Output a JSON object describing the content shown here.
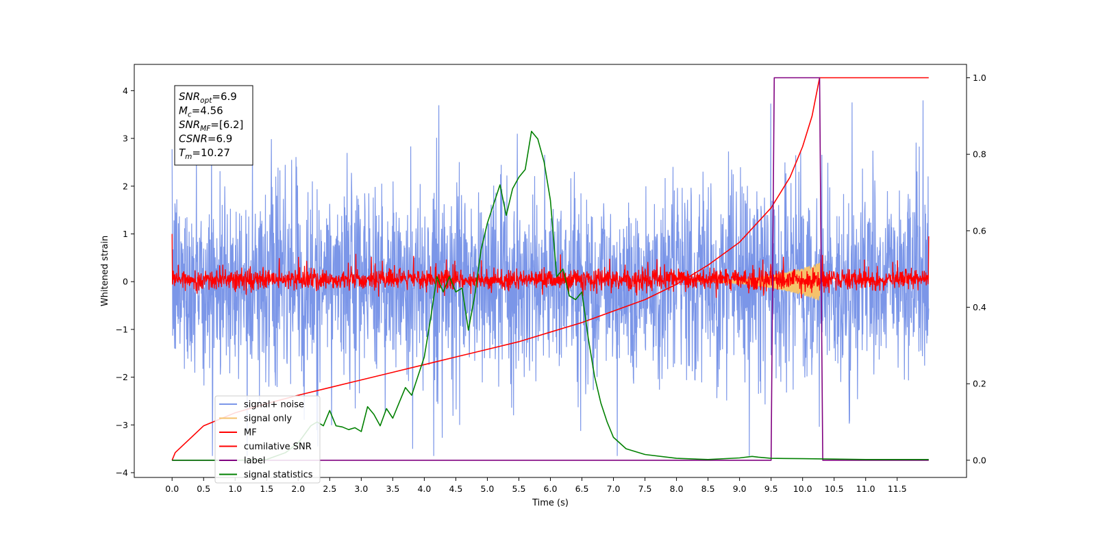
{
  "chart_data": {
    "type": "line",
    "title": "",
    "xlabel": "Time (s)",
    "ylabel": "Whitened strain",
    "ylabel_right": "",
    "xlim": [
      -0.6,
      12.6
    ],
    "ylim": [
      -4.1,
      4.55
    ],
    "ylim_right": [
      -0.045,
      1.035
    ],
    "x_ticks": [
      0.0,
      0.5,
      1.0,
      1.5,
      2.0,
      2.5,
      3.0,
      3.5,
      4.0,
      4.5,
      5.0,
      5.5,
      6.0,
      6.5,
      7.0,
      7.5,
      8.0,
      8.5,
      9.0,
      9.5,
      10.0,
      10.5,
      11.0,
      11.5
    ],
    "x_tick_labels": [
      "0.0",
      "0.5",
      "1.0",
      "1.5",
      "2.0",
      "2.5",
      "3.0",
      "3.5",
      "4.0",
      "4.5",
      "5.0",
      "5.5",
      "6.0",
      "6.5",
      "7.0",
      "7.5",
      "8.0",
      "8.5",
      "9.0",
      "9.5",
      "10.0",
      "10.5",
      "11.0",
      "11.5"
    ],
    "y_ticks": [
      -4,
      -3,
      -2,
      -1,
      0,
      1,
      2,
      3,
      4
    ],
    "y_tick_labels": [
      "−4",
      "−3",
      "−2",
      "−1",
      "0",
      "1",
      "2",
      "3",
      "4"
    ],
    "y_ticks_right": [
      0.0,
      0.2,
      0.4,
      0.6,
      0.8,
      1.0
    ],
    "y_tick_labels_right": [
      "0.0",
      "0.2",
      "0.4",
      "0.6",
      "0.8",
      "1.0"
    ],
    "grid": false,
    "legend_position": "lower-left",
    "annotation": {
      "lines": [
        {
          "base": "SNR",
          "sub": "opt",
          "text": "=6.9"
        },
        {
          "base": "M",
          "sub": "c",
          "text": "=4.56"
        },
        {
          "base": "SNR",
          "sub": "MF",
          "text": "=[6.2]"
        },
        {
          "base": "CSNR",
          "sub": "",
          "text": "=6.9"
        },
        {
          "base": "T",
          "sub": "m",
          "text": "=10.27"
        }
      ]
    },
    "series": [
      {
        "name": "signal+ noise",
        "color": "#7b96e8",
        "axis": "left",
        "style": "noise band",
        "x_range": [
          0.0,
          12.0
        ],
        "typical_range": [
          -2.0,
          2.0
        ],
        "extremes": [
          -3.65,
          4.15
        ]
      },
      {
        "name": "signal only",
        "color": "#f5c26b",
        "axis": "left",
        "style": "chirp",
        "x_range": [
          8.3,
          10.27
        ],
        "peak_amplitude": 0.4,
        "peak_time": 10.27
      },
      {
        "name": "MF",
        "color": "#ff0000",
        "axis": "left",
        "style": "noise band",
        "x_range": [
          0.0,
          12.0
        ],
        "typical_range": [
          -0.25,
          0.35
        ],
        "extremes": [
          -0.35,
          0.65
        ]
      },
      {
        "name": "cumilative SNR",
        "color": "#ff0000",
        "axis": "right",
        "x": [
          0.0,
          0.05,
          0.5,
          1.0,
          1.5,
          2.0,
          2.5,
          3.0,
          3.5,
          4.0,
          4.5,
          5.0,
          5.5,
          6.0,
          6.5,
          7.0,
          7.5,
          8.0,
          8.5,
          9.0,
          9.5,
          9.8,
          10.0,
          10.15,
          10.27,
          10.3,
          11.0,
          12.0
        ],
        "y": [
          0.0,
          0.02,
          0.09,
          0.124,
          0.148,
          0.17,
          0.19,
          0.21,
          0.23,
          0.25,
          0.27,
          0.29,
          0.31,
          0.335,
          0.36,
          0.39,
          0.42,
          0.46,
          0.51,
          0.57,
          0.66,
          0.74,
          0.82,
          0.9,
          1.0,
          1.0,
          1.0,
          1.0
        ]
      },
      {
        "name": "label",
        "color": "#800080",
        "axis": "right",
        "x": [
          0.0,
          9.5,
          9.55,
          10.27,
          10.32,
          12.0
        ],
        "y": [
          0.0,
          0.0,
          1.0,
          1.0,
          0.0,
          0.0
        ]
      },
      {
        "name": "signal statistics",
        "color": "#008000",
        "axis": "right",
        "x": [
          0.0,
          1.0,
          1.5,
          1.8,
          2.0,
          2.2,
          2.3,
          2.4,
          2.5,
          2.6,
          2.7,
          2.8,
          2.9,
          3.0,
          3.1,
          3.2,
          3.3,
          3.4,
          3.5,
          3.6,
          3.7,
          3.8,
          3.9,
          4.0,
          4.1,
          4.2,
          4.3,
          4.4,
          4.5,
          4.6,
          4.7,
          4.8,
          4.9,
          5.0,
          5.1,
          5.2,
          5.3,
          5.4,
          5.5,
          5.6,
          5.7,
          5.8,
          5.9,
          6.0,
          6.1,
          6.2,
          6.3,
          6.4,
          6.5,
          6.6,
          6.7,
          6.8,
          6.9,
          7.0,
          7.2,
          7.5,
          8.0,
          8.5,
          9.0,
          9.2,
          9.3,
          9.5,
          10.0,
          10.5,
          11.0,
          12.0
        ],
        "y": [
          0.0,
          0.0,
          0.002,
          0.02,
          0.045,
          0.09,
          0.1,
          0.09,
          0.13,
          0.09,
          0.087,
          0.08,
          0.085,
          0.075,
          0.14,
          0.12,
          0.09,
          0.135,
          0.11,
          0.15,
          0.19,
          0.17,
          0.22,
          0.27,
          0.37,
          0.48,
          0.44,
          0.48,
          0.44,
          0.45,
          0.34,
          0.43,
          0.55,
          0.62,
          0.67,
          0.72,
          0.64,
          0.71,
          0.74,
          0.76,
          0.86,
          0.84,
          0.78,
          0.68,
          0.48,
          0.5,
          0.43,
          0.42,
          0.44,
          0.32,
          0.22,
          0.15,
          0.1,
          0.06,
          0.03,
          0.015,
          0.005,
          0.002,
          0.006,
          0.01,
          0.008,
          0.005,
          0.004,
          0.003,
          0.002,
          0.002
        ]
      }
    ]
  }
}
